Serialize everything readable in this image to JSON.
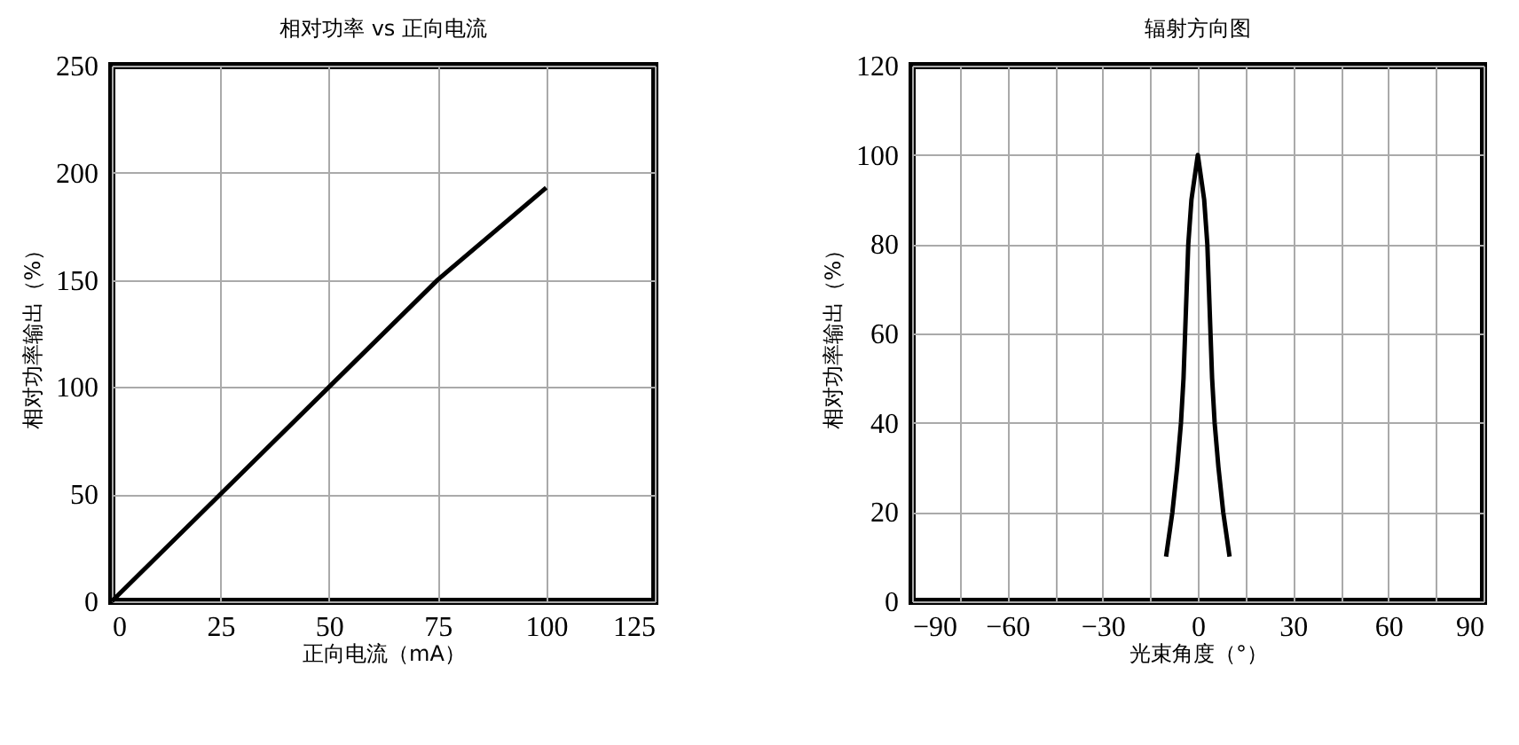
{
  "chart_data": [
    {
      "type": "line",
      "title": "相对功率 vs 正向电流",
      "xlabel": "正向电流（mA）",
      "ylabel": "相对功率输出（%）",
      "x": [
        0,
        25,
        50,
        75,
        100
      ],
      "series": [
        {
          "color": "#000000",
          "values": [
            0,
            50,
            100,
            150,
            193
          ]
        }
      ],
      "xlim": [
        0,
        125
      ],
      "xticks": [
        0,
        25,
        50,
        75,
        100,
        125
      ],
      "ylim": [
        0,
        250
      ],
      "yticks": [
        0,
        50,
        100,
        150,
        200,
        250
      ],
      "grid": true,
      "marker": "none",
      "line_style": "solid"
    },
    {
      "type": "line",
      "title": "辐射方向图",
      "xlabel": "光束角度（°）",
      "ylabel": "相对功率输出（%）",
      "x": [
        -10,
        -8,
        -6.5,
        -5.3,
        -4.5,
        -4,
        -3.5,
        -3,
        -2,
        0,
        2,
        3,
        3.5,
        4,
        4.5,
        5.3,
        6.5,
        8,
        10
      ],
      "series": [
        {
          "color": "#000000",
          "values": [
            10,
            20,
            30,
            40,
            50,
            60,
            70,
            80,
            90,
            100,
            90,
            80,
            70,
            60,
            50,
            40,
            30,
            20,
            10
          ]
        }
      ],
      "xlim": [
        -90,
        90
      ],
      "xticks": [
        -90,
        {
          "value": -75,
          "label": null
        },
        -60,
        {
          "value": -45,
          "label": null
        },
        -30,
        {
          "value": -15,
          "label": null
        },
        0,
        {
          "value": 15,
          "label": null
        },
        30,
        {
          "value": 45,
          "label": null
        },
        60,
        {
          "value": 75,
          "label": null
        },
        90
      ],
      "ylim": [
        0,
        120
      ],
      "yticks": [
        0,
        20,
        40,
        60,
        80,
        100,
        120
      ],
      "grid": true,
      "marker": "none",
      "line_style": "solid"
    }
  ]
}
